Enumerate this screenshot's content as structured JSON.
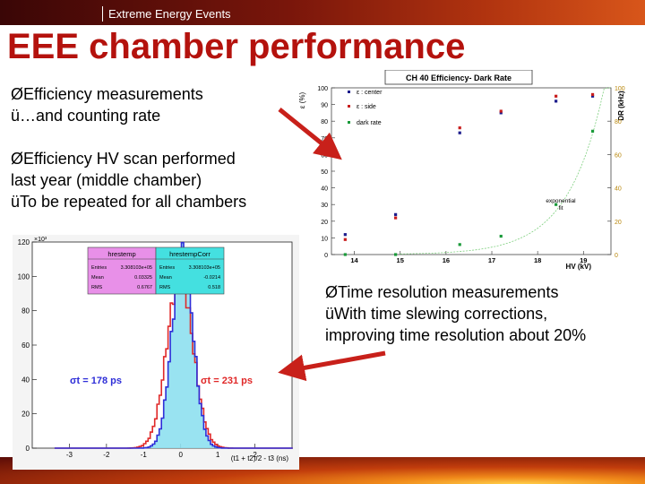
{
  "header": {
    "title": "Extreme Energy Events"
  },
  "slide": {
    "title": "EEE chamber performance"
  },
  "bullets": {
    "efficiency": {
      "mark": "Ø",
      "line1": "Efficiency measurements",
      "check": "ü",
      "line2": "…and counting rate"
    },
    "hv_scan": {
      "mark": "Ø",
      "line1": "Efficiency HV scan performed",
      "line2": "last year (middle chamber)",
      "check": "ü",
      "line3": "To be repeated for all chambers"
    },
    "time_res": {
      "mark": "Ø",
      "line1": "Time resolution measurements",
      "check": "ü",
      "line2": "With time slewing corrections,",
      "line3": "improving time resolution about 20%"
    }
  },
  "colors": {
    "title": "#b4120d",
    "center": "#1c1c8c",
    "side": "#c81e1e",
    "dark_rate": "#1a9a3a",
    "fit": "#7fd07f",
    "arrow": "#c8201a",
    "hist_blue": "#2e2ed8",
    "hist_red": "#e02828",
    "hist_fill": "#8ee0f0"
  },
  "icons": {
    "bullet": "arrowhead-bullet",
    "check": "check-mark"
  },
  "chart_data": [
    {
      "type": "scatter",
      "title": "CH 40  Efficiency- Dark Rate",
      "xlabel": "HV (kV)",
      "ylabel": "ε (%)",
      "y2label": "DR (kHz)",
      "xlim": [
        13.5,
        19.6
      ],
      "ylim": [
        0,
        100
      ],
      "y2lim": [
        0,
        100
      ],
      "x_ticks": [
        "14",
        "15",
        "16",
        "17",
        "18",
        "19"
      ],
      "y_ticks": [
        "0",
        "10",
        "20",
        "30",
        "40",
        "50",
        "60",
        "70",
        "80",
        "90",
        "100"
      ],
      "y2_ticks": [
        "0",
        "20",
        "40",
        "60",
        "80",
        "100"
      ],
      "grid": false,
      "legend_position": "top-left",
      "series": [
        {
          "name": "ε : center",
          "x": [
            13.8,
            14.9,
            16.3,
            17.2,
            18.4,
            19.2
          ],
          "y": [
            12,
            24,
            73,
            85,
            92,
            95
          ]
        },
        {
          "name": "ε : side",
          "x": [
            13.8,
            14.9,
            16.3,
            17.2,
            18.4,
            19.2
          ],
          "y": [
            9,
            22,
            76,
            86,
            95,
            96
          ]
        },
        {
          "name": "dark rate",
          "x": [
            13.8,
            14.9,
            16.3,
            17.2,
            18.4,
            19.2
          ],
          "y": [
            0,
            0,
            6,
            11,
            30,
            74
          ],
          "axis": "right"
        }
      ],
      "fit": {
        "label_line1": "exponential",
        "label_line2": "fit"
      }
    },
    {
      "type": "histogram",
      "xlabel": "(t1 + t2)/2 - t3 (ns)",
      "y_exponent": "×10³",
      "xlim": [
        -4,
        3
      ],
      "ylim": [
        0,
        120
      ],
      "x_ticks": [
        "-3",
        "-2",
        "-1",
        "0",
        "1",
        "2"
      ],
      "y_ticks": [
        "0",
        "20",
        "40",
        "60",
        "80",
        "100",
        "120"
      ],
      "annotation_blue": "σt = 178 ps",
      "annotation_red": "σt = 231 ps",
      "series": [
        {
          "name": "hrestemp",
          "peak": 100,
          "center": -0.05,
          "sigma": 0.35
        },
        {
          "name": "hrestempCorr",
          "peak": 115,
          "center": 0.02,
          "sigma": 0.28
        }
      ],
      "stats_boxes": [
        {
          "name": "hrestemp",
          "rows": [
            [
              "Entries",
              "3.308103e+05"
            ],
            [
              "Mean",
              "0.03325"
            ],
            [
              "RMS",
              "0.6767"
            ]
          ]
        },
        {
          "name": "hrestempCorr",
          "rows": [
            [
              "Entries",
              "3.308103e+05"
            ],
            [
              "Mean",
              "-0.0214"
            ],
            [
              "RMS",
              "0.518"
            ]
          ]
        }
      ]
    }
  ]
}
